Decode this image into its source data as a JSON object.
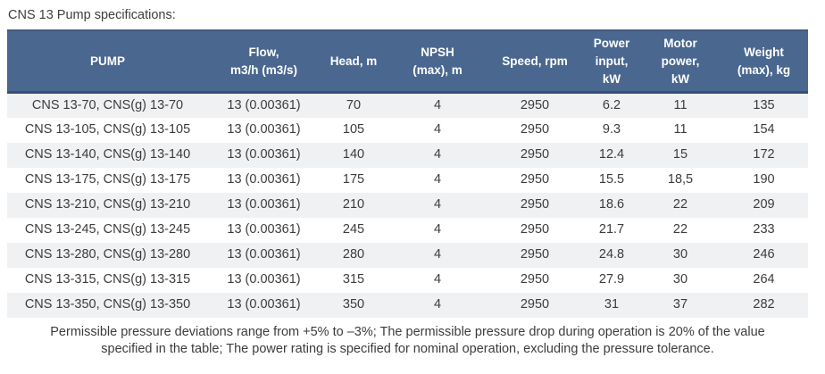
{
  "page": {
    "title": "CNS 13 Pump specifications:"
  },
  "table": {
    "columns": [
      "PUMP",
      "Flow,\nm3/h (m3/s)",
      "Head, m",
      "NPSH\n(max), m",
      "Speed, rpm",
      "Power\ninput,\nkW",
      "Motor\npower,\nkW",
      "Weight\n(max), kg"
    ],
    "rows": [
      [
        "CNS 13-70, CNS(g) 13-70",
        "13 (0.00361)",
        "70",
        "4",
        "2950",
        "6.2",
        "11",
        "135"
      ],
      [
        "CNS 13-105, CNS(g) 13-105",
        "13 (0.00361)",
        "105",
        "4",
        "2950",
        "9.3",
        "11",
        "154"
      ],
      [
        "CNS 13-140, CNS(g) 13-140",
        "13 (0.00361)",
        "140",
        "4",
        "2950",
        "12.4",
        "15",
        "172"
      ],
      [
        "CNS 13-175, CNS(g) 13-175",
        "13 (0.00361)",
        "175",
        "4",
        "2950",
        "15.5",
        "18,5",
        "190"
      ],
      [
        "CNS 13-210, CNS(g) 13-210",
        "13 (0.00361)",
        "210",
        "4",
        "2950",
        "18.6",
        "22",
        "209"
      ],
      [
        "CNS 13-245, CNS(g) 13-245",
        "13 (0.00361)",
        "245",
        "4",
        "2950",
        "21.7",
        "22",
        "233"
      ],
      [
        "CNS 13-280, CNS(g) 13-280",
        "13 (0.00361)",
        "280",
        "4",
        "2950",
        "24.8",
        "30",
        "246"
      ],
      [
        "CNS 13-315, CNS(g) 13-315",
        "13 (0.00361)",
        "315",
        "4",
        "2950",
        "27.9",
        "30",
        "264"
      ],
      [
        "CNS 13-350, CNS(g) 13-350",
        "13 (0.00361)",
        "350",
        "4",
        "2950",
        "31",
        "37",
        "282"
      ]
    ]
  },
  "footnote": {
    "lines": [
      "Permissible pressure deviations range from +5% to –3%; The permissible pressure drop during operation is 20% of the value",
      "specified in the table; The power rating is specified for nominal operation, excluding the pressure tolerance."
    ]
  },
  "colors": {
    "header_bg": "#4a678f",
    "header_border_bottom": "#36507a",
    "header_text": "#ffffff",
    "row_stripe_bg": "#f0f1f2",
    "row_bg": "#ffffff",
    "body_text": "#3c3c3c"
  }
}
